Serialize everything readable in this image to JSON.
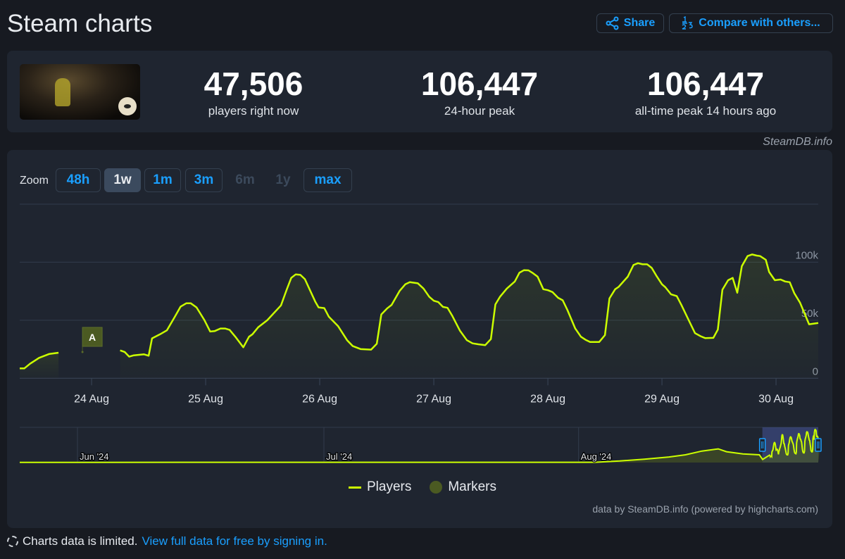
{
  "header": {
    "title": "Steam charts",
    "share_label": "Share",
    "compare_label": "Compare with others..."
  },
  "stats": [
    {
      "value": "47,506",
      "label": "players right now"
    },
    {
      "value": "106,447",
      "label": "24-hour peak"
    },
    {
      "value": "106,447",
      "label": "all-time peak 14 hours ago"
    }
  ],
  "steamdb_credit": "SteamDB.info",
  "zoom": {
    "label": "Zoom",
    "buttons": [
      {
        "label": "48h",
        "state": "enabled"
      },
      {
        "label": "1w",
        "state": "active"
      },
      {
        "label": "1m",
        "state": "enabled"
      },
      {
        "label": "3m",
        "state": "enabled"
      },
      {
        "label": "6m",
        "state": "disabled"
      },
      {
        "label": "1y",
        "state": "disabled"
      },
      {
        "label": "max",
        "state": "enabled"
      }
    ]
  },
  "legend": {
    "players": "Players",
    "markers": "Markers"
  },
  "hc_credit": "data by SteamDB.info (powered by highcharts.com)",
  "footer": {
    "text": "Charts data is limited.",
    "link": "View full data for free by signing in."
  },
  "colors": {
    "line": "#ccff00",
    "accent": "#1a9fff",
    "marker": "#4b5a22"
  },
  "chart_data": {
    "type": "line",
    "title": "",
    "xlabel": "",
    "ylabel": "",
    "x_unit": "day of August 2024",
    "xlim": [
      23.37,
      30.37
    ],
    "ylim": [
      0,
      150000
    ],
    "x_ticks": [
      24,
      25,
      26,
      27,
      28,
      29,
      30
    ],
    "x_tick_labels": [
      "24 Aug",
      "25 Aug",
      "26 Aug",
      "27 Aug",
      "28 Aug",
      "29 Aug",
      "30 Aug"
    ],
    "y_ticks": [
      0,
      50000,
      100000
    ],
    "y_tick_labels": [
      "0",
      "50k",
      "100k"
    ],
    "grid": true,
    "legend_position": "bottom-center",
    "markers": [
      {
        "label": "A",
        "x": 23.92
      }
    ],
    "series": [
      {
        "name": "Players",
        "unit": "thousands",
        "points": [
          [
            23.37,
            8.5
          ],
          [
            23.41,
            8.5
          ],
          [
            23.46,
            12.5
          ],
          [
            23.54,
            17.6
          ],
          [
            23.63,
            21
          ],
          [
            23.71,
            22
          ],
          [
            23.9,
            null
          ],
          [
            24.25,
            24
          ],
          [
            24.29,
            22.7
          ],
          [
            24.33,
            18.6
          ],
          [
            24.37,
            19.8
          ],
          [
            24.46,
            20.6
          ],
          [
            24.5,
            19.4
          ],
          [
            24.53,
            34.4
          ],
          [
            24.6,
            37.9
          ],
          [
            24.66,
            41.3
          ],
          [
            24.73,
            53
          ],
          [
            24.78,
            61.7
          ],
          [
            24.83,
            64.6
          ],
          [
            24.87,
            64.6
          ],
          [
            24.92,
            61.1
          ],
          [
            24.99,
            50
          ],
          [
            25.04,
            40.3
          ],
          [
            25.08,
            40.7
          ],
          [
            25.13,
            42.9
          ],
          [
            25.17,
            42.9
          ],
          [
            25.21,
            41.7
          ],
          [
            25.26,
            35.8
          ],
          [
            25.33,
            26.7
          ],
          [
            25.38,
            35.8
          ],
          [
            25.41,
            37.9
          ],
          [
            25.46,
            43.9
          ],
          [
            25.54,
            50
          ],
          [
            25.66,
            62.8
          ],
          [
            25.71,
            76.3
          ],
          [
            25.75,
            86.5
          ],
          [
            25.79,
            89.5
          ],
          [
            25.83,
            89.1
          ],
          [
            25.87,
            85.4
          ],
          [
            25.96,
            66.2
          ],
          [
            25.99,
            61.1
          ],
          [
            26.04,
            60.5
          ],
          [
            26.08,
            53
          ],
          [
            26.16,
            45
          ],
          [
            26.24,
            32.8
          ],
          [
            26.29,
            27.7
          ],
          [
            26.36,
            25.1
          ],
          [
            26.45,
            24.7
          ],
          [
            26.5,
            29.8
          ],
          [
            26.54,
            55
          ],
          [
            26.59,
            60.1
          ],
          [
            26.63,
            63.2
          ],
          [
            26.7,
            75.3
          ],
          [
            26.75,
            81
          ],
          [
            26.79,
            82.8
          ],
          [
            26.86,
            81.8
          ],
          [
            26.91,
            77.3
          ],
          [
            26.96,
            70.2
          ],
          [
            27.0,
            66.8
          ],
          [
            27.04,
            65.6
          ],
          [
            27.08,
            61.5
          ],
          [
            27.12,
            60.7
          ],
          [
            27.16,
            54.1
          ],
          [
            27.23,
            40.9
          ],
          [
            27.29,
            32.8
          ],
          [
            27.34,
            30.1
          ],
          [
            27.39,
            29.3
          ],
          [
            27.45,
            28.5
          ],
          [
            27.5,
            33.8
          ],
          [
            27.54,
            63.6
          ],
          [
            27.58,
            70.2
          ],
          [
            27.64,
            77.3
          ],
          [
            27.71,
            83.4
          ],
          [
            27.75,
            90.9
          ],
          [
            27.79,
            93.1
          ],
          [
            27.83,
            93
          ],
          [
            27.87,
            90.5
          ],
          [
            27.91,
            87.5
          ],
          [
            27.96,
            76.7
          ],
          [
            28.0,
            75.9
          ],
          [
            28.04,
            74.3
          ],
          [
            28.09,
            69.3
          ],
          [
            28.13,
            67.2
          ],
          [
            28.17,
            59.1
          ],
          [
            28.24,
            42.9
          ],
          [
            28.29,
            35.8
          ],
          [
            28.33,
            33.2
          ],
          [
            28.37,
            31.3
          ],
          [
            28.45,
            31.3
          ],
          [
            28.5,
            37.2
          ],
          [
            28.54,
            68.8
          ],
          [
            28.59,
            76.7
          ],
          [
            28.62,
            78.7
          ],
          [
            28.7,
            87.5
          ],
          [
            28.75,
            97.6
          ],
          [
            28.79,
            99.2
          ],
          [
            28.83,
            98.2
          ],
          [
            28.87,
            98.2
          ],
          [
            28.91,
            95.1
          ],
          [
            28.95,
            88.5
          ],
          [
            29.0,
            81
          ],
          [
            29.03,
            78.4
          ],
          [
            29.08,
            72.3
          ],
          [
            29.13,
            70.8
          ],
          [
            29.17,
            63.2
          ],
          [
            29.24,
            49
          ],
          [
            29.29,
            38.9
          ],
          [
            29.34,
            36.2
          ],
          [
            29.38,
            34.6
          ],
          [
            29.45,
            34.8
          ],
          [
            29.49,
            41.9
          ],
          [
            29.53,
            76.3
          ],
          [
            29.58,
            84.5
          ],
          [
            29.62,
            86.5
          ],
          [
            29.66,
            73.7
          ],
          [
            29.7,
            96.6
          ],
          [
            29.75,
            105.3
          ],
          [
            29.79,
            106.7
          ],
          [
            29.83,
            105.7
          ],
          [
            29.86,
            105.3
          ],
          [
            29.91,
            102.1
          ],
          [
            29.94,
            91.5
          ],
          [
            29.99,
            84.5
          ],
          [
            30.04,
            85.1
          ],
          [
            30.08,
            83.4
          ],
          [
            30.12,
            82.8
          ],
          [
            30.16,
            73.3
          ],
          [
            30.21,
            65.2
          ],
          [
            30.29,
            46.5
          ],
          [
            30.37,
            47.6
          ]
        ]
      }
    ],
    "navigator": {
      "tick_labels": [
        "Jun '24",
        "Jul '24",
        "Aug '24"
      ],
      "selected_range_days_aug": [
        23.37,
        30.37
      ],
      "points_thousands": [
        [
          "05-24",
          0.5
        ],
        [
          "06-15",
          0.8
        ],
        [
          "07-10",
          0.8
        ],
        [
          "08-03",
          1
        ],
        [
          "08-06",
          5
        ],
        [
          "08-09",
          11
        ],
        [
          "08-12",
          18
        ],
        [
          "08-14",
          25
        ],
        [
          "08-16",
          37
        ],
        [
          "08-18",
          44
        ],
        [
          "08-19",
          35
        ],
        [
          "08-21",
          28
        ],
        [
          "08-23",
          25
        ],
        [
          "08-23.4",
          10
        ]
      ]
    }
  }
}
